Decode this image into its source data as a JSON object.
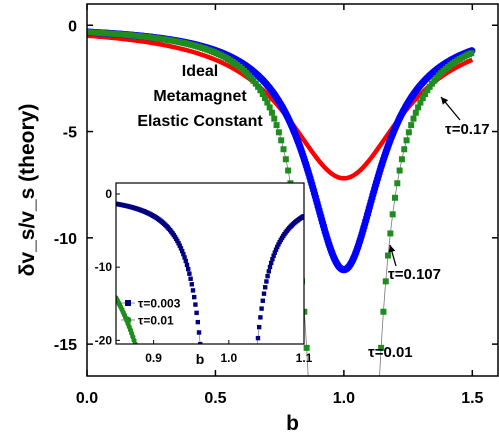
{
  "chart_data": [
    {
      "type": "scatter",
      "xlabel": "b",
      "ylabel": "δv_s/v_s (theory)",
      "xlim": [
        0.0,
        1.6
      ],
      "ylim": [
        -16.5,
        1.0
      ],
      "xticks": [
        "0.0",
        "0.5",
        "1.0",
        "1.5"
      ],
      "yticks": [
        "0",
        "-5",
        "-10",
        "-15"
      ],
      "annotation_lines": [
        "Ideal",
        "Metamagnet",
        "Elastic Constant"
      ],
      "curve_labels": [
        {
          "text": "τ=0.17",
          "b": 1.38,
          "y": -3.0
        },
        {
          "text": "τ=0.107",
          "b": 1.22,
          "y": -9.0
        },
        {
          "text": "τ=0.01",
          "b": 1.04,
          "y": -15.3
        }
      ],
      "series": [
        {
          "tau": 0.17,
          "color": "#ff0000",
          "b0": 1.0,
          "amplitude": 7.2,
          "width": 0.27,
          "b_range": [
            0.0,
            1.5
          ],
          "marker": "line"
        },
        {
          "tau": 0.107,
          "color": "#0000ff",
          "b0": 1.0,
          "amplitude": 11.5,
          "width": 0.17,
          "b_range": [
            0.0,
            1.5
          ],
          "marker": "circle"
        },
        {
          "tau": 0.01,
          "color": "#1e8c1e",
          "b0": 1.0,
          "amplitude": 1000,
          "width": 0.018,
          "b_range": [
            0.0,
            1.5
          ],
          "marker": "square",
          "min_y": -17
        }
      ]
    },
    {
      "type": "scatter",
      "inset": true,
      "xlim": [
        0.85,
        1.1
      ],
      "ylim": [
        -20.5,
        1.5
      ],
      "xlabel": "b",
      "xticks": [
        "0.9",
        "1.0",
        "1.1"
      ],
      "yticks": [
        "0",
        "-10",
        "-20"
      ],
      "series": [
        {
          "name": "τ=0.003",
          "tau": 0.003,
          "color": "#000080",
          "marker": "square",
          "b0": 1.0,
          "amplitude": 1000,
          "width": 0.0055
        },
        {
          "name": "τ=0.01",
          "tau": 0.01,
          "color": "#1e8c1e",
          "marker": "circle",
          "b0": 1.0,
          "amplitude": 1000,
          "width": 0.018
        }
      ]
    }
  ]
}
